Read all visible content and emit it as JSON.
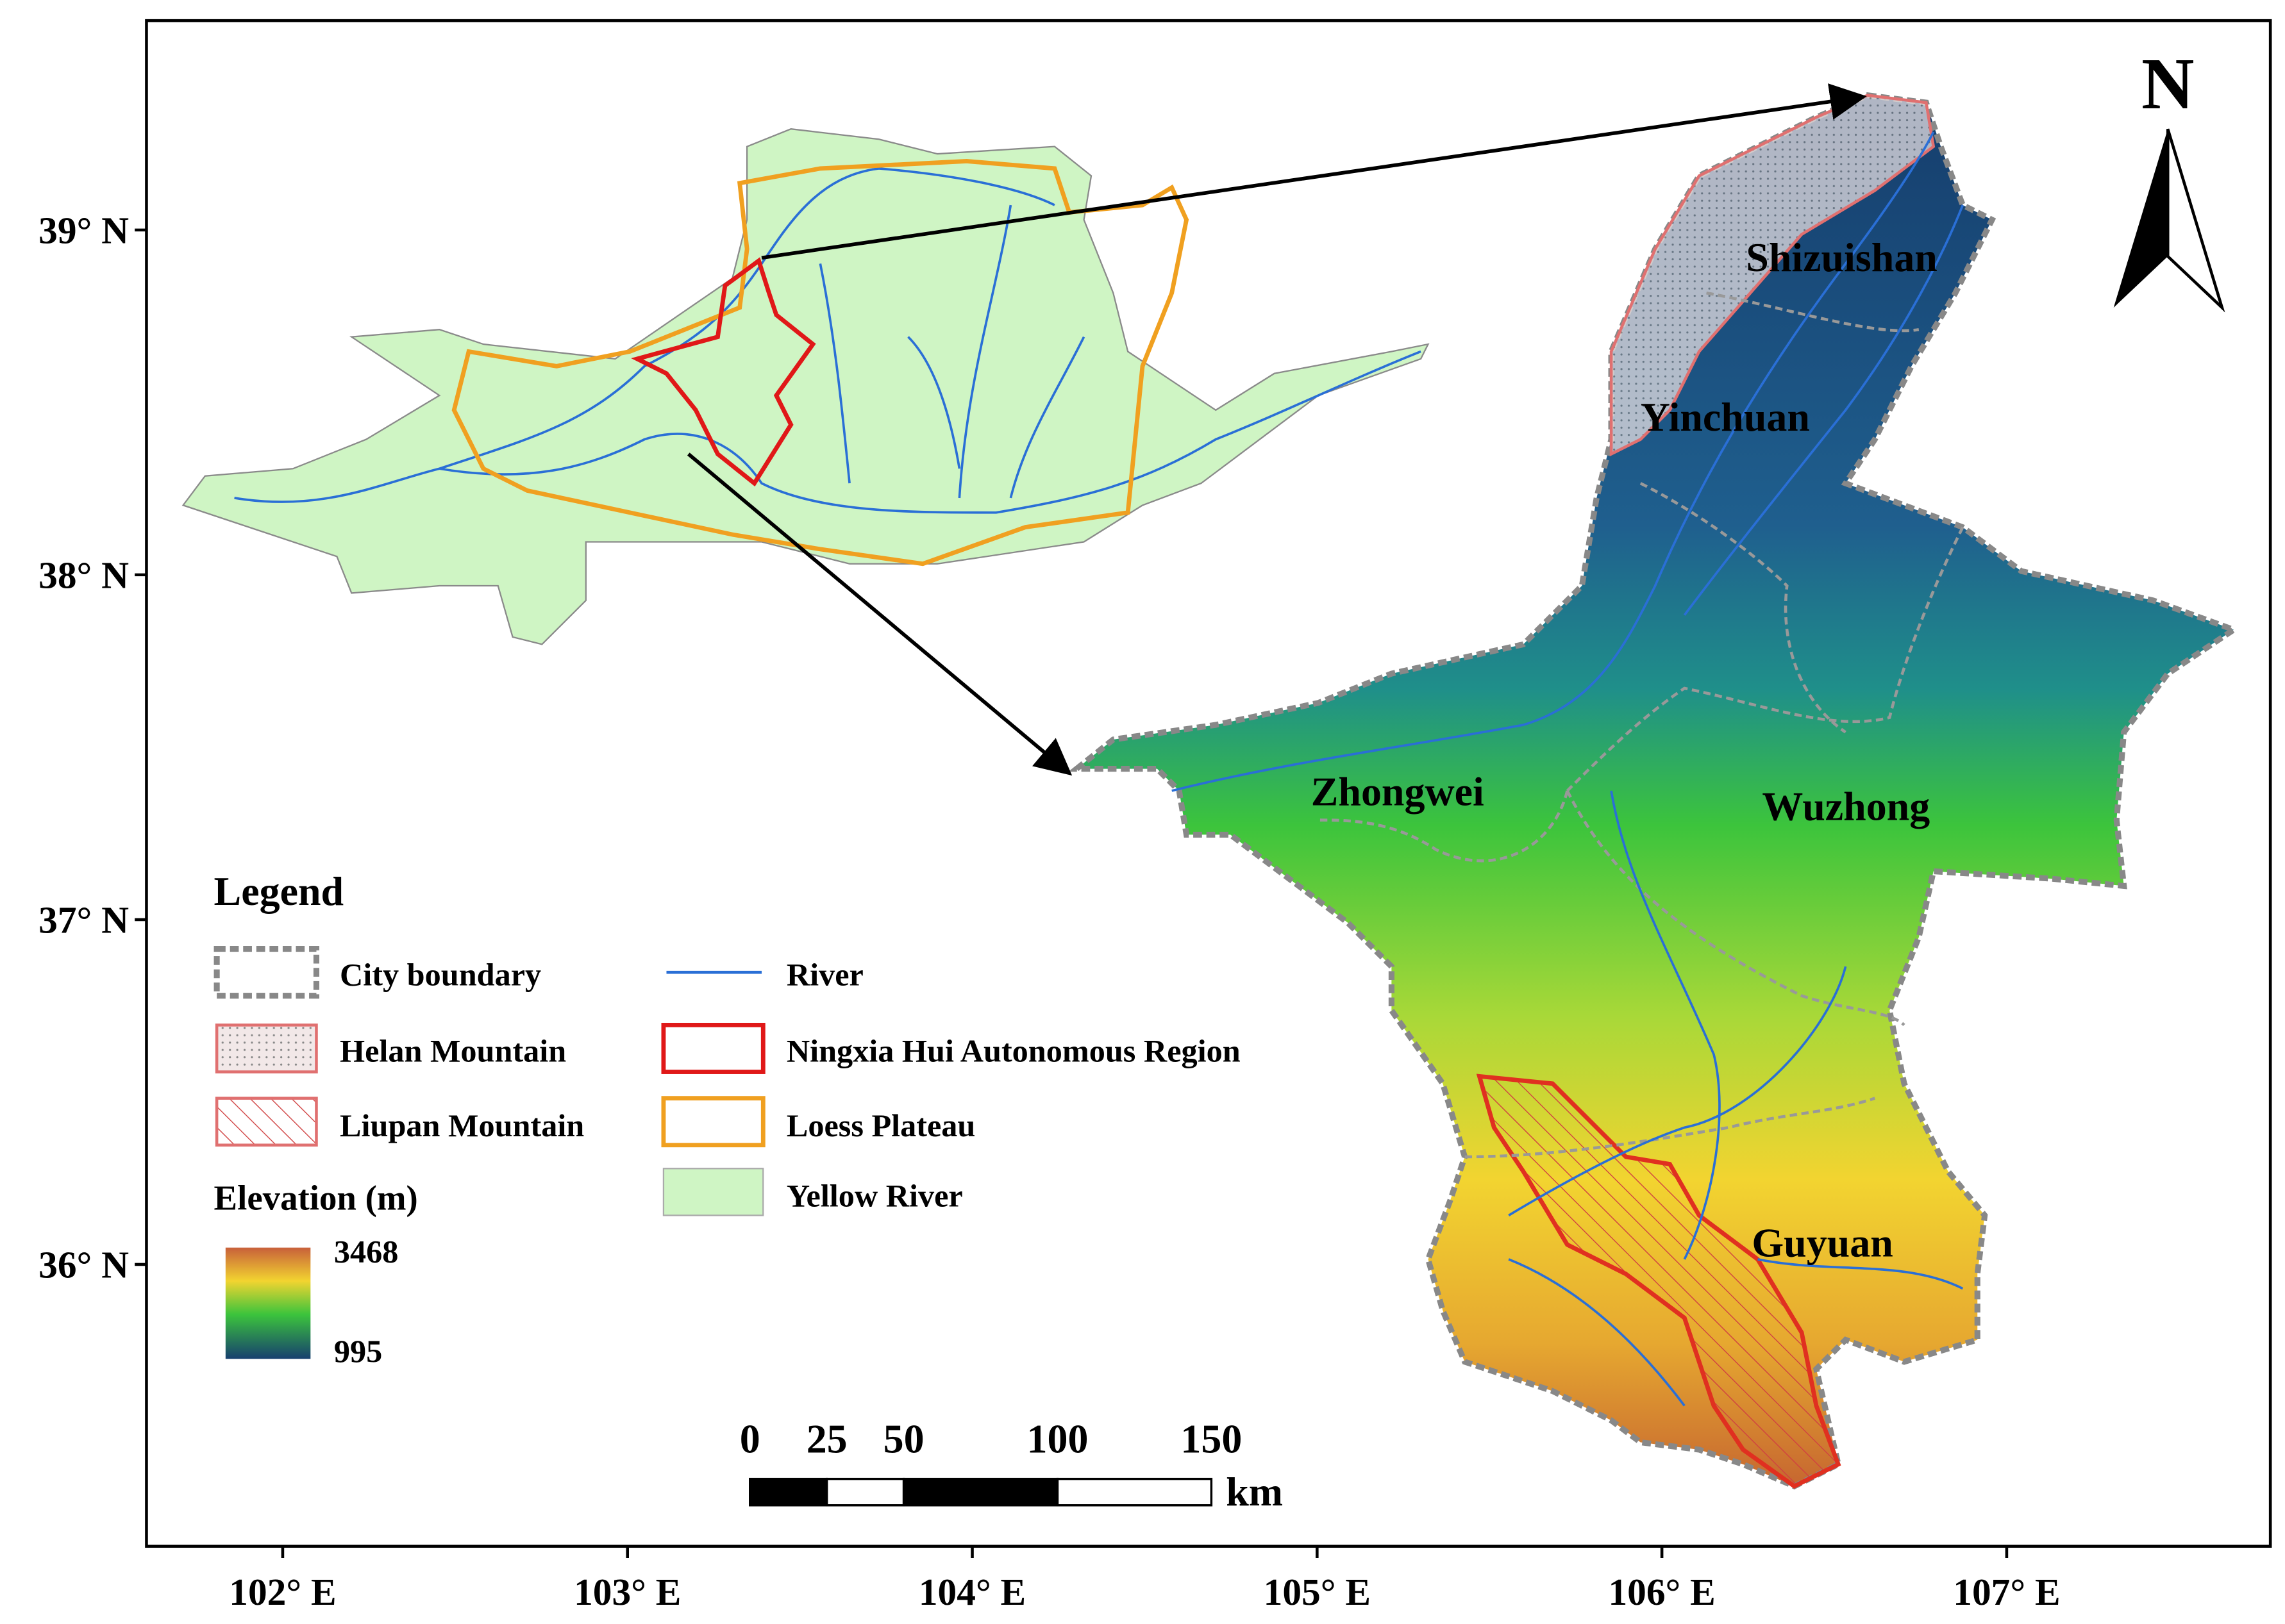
{
  "map": {
    "north": "N",
    "lat_ticks": [
      {
        "value": 39,
        "label": "39° N"
      },
      {
        "value": 38,
        "label": "38° N"
      },
      {
        "value": 37,
        "label": "37° N"
      },
      {
        "value": 36,
        "label": "36° N"
      }
    ],
    "lon_ticks": [
      {
        "value": 102,
        "label": "102° E"
      },
      {
        "value": 103,
        "label": "103° E"
      },
      {
        "value": 104,
        "label": "104° E"
      },
      {
        "value": 105,
        "label": "105° E"
      },
      {
        "value": 106,
        "label": "106° E"
      },
      {
        "value": 107,
        "label": "107° E"
      }
    ],
    "places": [
      "Shizuishan",
      "Yinchuan",
      "Zhongwei",
      "Wuzhong",
      "Guyuan"
    ],
    "legend": {
      "title": "Legend",
      "items": [
        "City boundary",
        "Helan Mountain",
        "Liupan Mountain",
        "River",
        "Ningxia Hui Autonomous Region",
        "Loess Plateau",
        "Yellow River"
      ],
      "elevation_title": "Elevation (m)",
      "elevation_max": 3468,
      "elevation_min": 995
    },
    "scale_bar": {
      "ticks": [
        0,
        25,
        50,
        100,
        150
      ],
      "unit": "km"
    }
  }
}
